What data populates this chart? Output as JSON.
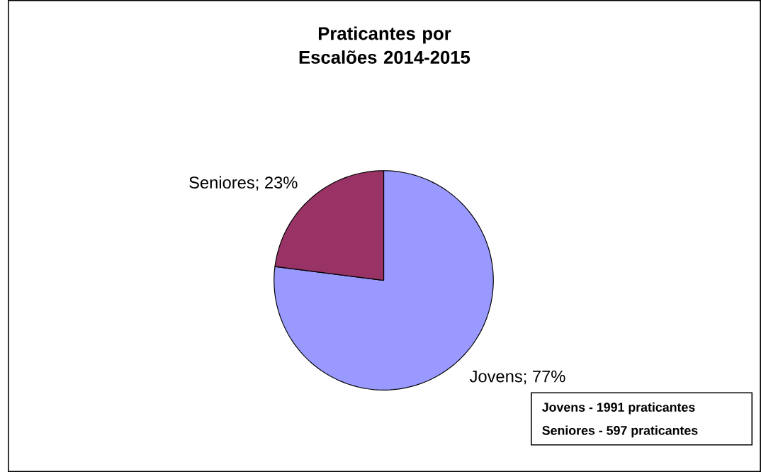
{
  "chart_data": {
    "type": "pie",
    "title": "Praticantes por Escalões 2014-2015",
    "categories": [
      "Jovens",
      "Seniores"
    ],
    "values": [
      77,
      23
    ],
    "value_labels": [
      "; 77%",
      "; 23%"
    ],
    "colors": [
      "#9999ff",
      "#993366"
    ],
    "legend": false,
    "annotations": [
      "Jovens - 1991 praticantes",
      "Seniores - 597 praticantes"
    ]
  }
}
